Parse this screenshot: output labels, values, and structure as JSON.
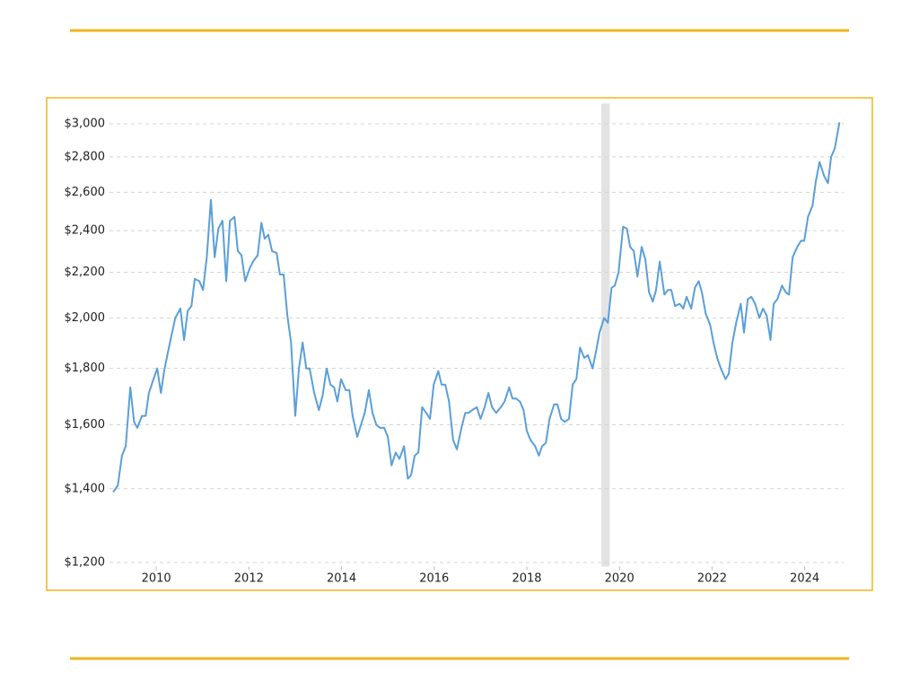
{
  "chart_data": {
    "type": "line",
    "log_y": true,
    "grid": true,
    "color": "#5b9fd8",
    "shade_color": "#e3e3e3",
    "shaded_periods": [
      [
        2019.61,
        2019.79
      ]
    ],
    "xlim": [
      2008.99,
      2024.84
    ],
    "xticks": [
      2010,
      2012,
      2014,
      2016,
      2018,
      2020,
      2022,
      2024
    ],
    "ylim": [
      1190,
      3130
    ],
    "yticks": [
      {
        "value": 1200,
        "label": "$1,200"
      },
      {
        "value": 1400,
        "label": "$1,400"
      },
      {
        "value": 1600,
        "label": "$1,600"
      },
      {
        "value": 1800,
        "label": "$1,800"
      },
      {
        "value": 2000,
        "label": "$2,000"
      },
      {
        "value": 2200,
        "label": "$2,200"
      },
      {
        "value": 2400,
        "label": "$2,400"
      },
      {
        "value": 2600,
        "label": "$2,600"
      },
      {
        "value": 2800,
        "label": "$2,800"
      },
      {
        "value": 3000,
        "label": "$3,000"
      }
    ],
    "x": [
      2009.07,
      2009.17,
      2009.26,
      2009.34,
      2009.44,
      2009.52,
      2009.59,
      2009.69,
      2009.77,
      2009.84,
      2009.92,
      2010.02,
      2010.1,
      2010.17,
      2010.25,
      2010.33,
      2010.41,
      2010.52,
      2010.6,
      2010.68,
      2010.76,
      2010.83,
      2010.93,
      2011.01,
      2011.09,
      2011.18,
      2011.26,
      2011.34,
      2011.43,
      2011.51,
      2011.59,
      2011.69,
      2011.76,
      2011.84,
      2011.92,
      2012.02,
      2012.09,
      2012.19,
      2012.27,
      2012.34,
      2012.42,
      2012.5,
      2012.6,
      2012.67,
      2012.75,
      2012.83,
      2012.91,
      2013.0,
      2013.08,
      2013.16,
      2013.24,
      2013.31,
      2013.41,
      2013.51,
      2013.59,
      2013.68,
      2013.76,
      2013.84,
      2013.91,
      2013.99,
      2014.09,
      2014.17,
      2014.24,
      2014.34,
      2014.42,
      2014.5,
      2014.59,
      2014.67,
      2014.75,
      2014.83,
      2014.92,
      2015.0,
      2015.08,
      2015.17,
      2015.25,
      2015.35,
      2015.43,
      2015.5,
      2015.58,
      2015.66,
      2015.74,
      2015.83,
      2015.91,
      2015.99,
      2016.09,
      2016.16,
      2016.24,
      2016.32,
      2016.41,
      2016.49,
      2016.59,
      2016.67,
      2016.74,
      2016.82,
      2016.92,
      2017.0,
      2017.09,
      2017.17,
      2017.25,
      2017.34,
      2017.44,
      2017.52,
      2017.62,
      2017.69,
      2017.77,
      2017.85,
      2017.93,
      2018.0,
      2018.08,
      2018.18,
      2018.26,
      2018.33,
      2018.41,
      2018.49,
      2018.59,
      2018.66,
      2018.74,
      2018.82,
      2018.91,
      2018.99,
      2019.07,
      2019.15,
      2019.24,
      2019.32,
      2019.42,
      2019.5,
      2019.57,
      2019.67,
      2019.75,
      2019.83,
      2019.9,
      2019.98,
      2020.08,
      2020.16,
      2020.23,
      2020.31,
      2020.39,
      2020.48,
      2020.56,
      2020.64,
      2020.72,
      2020.79,
      2020.87,
      2020.97,
      2021.05,
      2021.12,
      2021.2,
      2021.3,
      2021.38,
      2021.45,
      2021.55,
      2021.63,
      2021.71,
      2021.78,
      2021.86,
      2021.96,
      2022.03,
      2022.11,
      2022.19,
      2022.29,
      2022.36,
      2022.44,
      2022.52,
      2022.62,
      2022.69,
      2022.77,
      2022.85,
      2022.93,
      2023.02,
      2023.1,
      2023.18,
      2023.26,
      2023.33,
      2023.41,
      2023.51,
      2023.59,
      2023.66,
      2023.74,
      2023.84,
      2023.92,
      2023.99,
      2024.07,
      2024.17,
      2024.24,
      2024.32,
      2024.42,
      2024.5,
      2024.57,
      2024.65,
      2024.75
    ],
    "values": [
      1390,
      1410,
      1500,
      1530,
      1730,
      1610,
      1590,
      1630,
      1630,
      1710,
      1750,
      1800,
      1710,
      1790,
      1860,
      1930,
      2000,
      2040,
      1910,
      2030,
      2050,
      2170,
      2160,
      2120,
      2270,
      2560,
      2270,
      2410,
      2450,
      2160,
      2450,
      2470,
      2300,
      2280,
      2160,
      2220,
      2250,
      2280,
      2440,
      2360,
      2380,
      2300,
      2290,
      2190,
      2190,
      2010,
      1900,
      1630,
      1800,
      1900,
      1800,
      1800,
      1710,
      1650,
      1700,
      1800,
      1740,
      1730,
      1680,
      1760,
      1720,
      1720,
      1630,
      1560,
      1600,
      1640,
      1720,
      1640,
      1600,
      1590,
      1590,
      1560,
      1470,
      1510,
      1490,
      1530,
      1430,
      1440,
      1500,
      1510,
      1660,
      1640,
      1620,
      1740,
      1790,
      1740,
      1740,
      1680,
      1550,
      1520,
      1590,
      1640,
      1640,
      1650,
      1660,
      1620,
      1660,
      1710,
      1660,
      1640,
      1660,
      1680,
      1730,
      1690,
      1690,
      1680,
      1650,
      1580,
      1550,
      1530,
      1500,
      1530,
      1540,
      1620,
      1670,
      1670,
      1620,
      1610,
      1620,
      1740,
      1760,
      1880,
      1840,
      1850,
      1800,
      1870,
      1940,
      2000,
      1980,
      2130,
      2140,
      2200,
      2420,
      2410,
      2320,
      2300,
      2180,
      2320,
      2260,
      2110,
      2070,
      2120,
      2250,
      2100,
      2120,
      2120,
      2050,
      2060,
      2040,
      2090,
      2040,
      2130,
      2160,
      2110,
      2020,
      1970,
      1900,
      1840,
      1800,
      1760,
      1780,
      1900,
      1980,
      2060,
      1940,
      2080,
      2090,
      2060,
      2000,
      2040,
      2010,
      1910,
      2060,
      2080,
      2140,
      2110,
      2100,
      2270,
      2320,
      2350,
      2350,
      2470,
      2530,
      2660,
      2770,
      2690,
      2650,
      2800,
      2850,
      3010
    ]
  }
}
